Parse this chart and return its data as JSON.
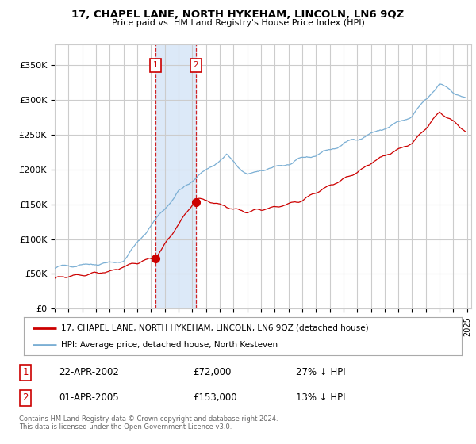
{
  "title": "17, CHAPEL LANE, NORTH HYKEHAM, LINCOLN, LN6 9QZ",
  "subtitle": "Price paid vs. HM Land Registry's House Price Index (HPI)",
  "ylabel_ticks": [
    "£0",
    "£50K",
    "£100K",
    "£150K",
    "£200K",
    "£250K",
    "£300K",
    "£350K"
  ],
  "ytick_values": [
    0,
    50000,
    100000,
    150000,
    200000,
    250000,
    300000,
    350000
  ],
  "ylim": [
    0,
    380000
  ],
  "xlim_start": 1995.0,
  "xlim_end": 2025.3,
  "hpi_color": "#7bafd4",
  "price_color": "#cc0000",
  "vline1_x": 2002.31,
  "vline2_x": 2005.25,
  "marker1_x": 2002.31,
  "marker1_y": 72000,
  "marker2_x": 2005.25,
  "marker2_y": 153000,
  "annotation1": {
    "num": "1",
    "date": "22-APR-2002",
    "price": "£72,000",
    "hpi": "27% ↓ HPI"
  },
  "annotation2": {
    "num": "2",
    "date": "01-APR-2005",
    "price": "£153,000",
    "hpi": "13% ↓ HPI"
  },
  "legend_label1": "17, CHAPEL LANE, NORTH HYKEHAM, LINCOLN, LN6 9QZ (detached house)",
  "legend_label2": "HPI: Average price, detached house, North Kesteven",
  "footnote": "Contains HM Land Registry data © Crown copyright and database right 2024.\nThis data is licensed under the Open Government Licence v3.0.",
  "bg_color": "#ffffff",
  "plot_bg_color": "#ffffff",
  "grid_color": "#cccccc",
  "shade_color": "#dce9f8"
}
